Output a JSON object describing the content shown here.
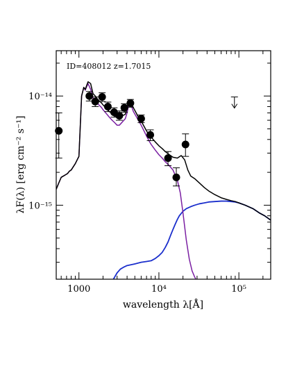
{
  "chart_data": {
    "type": "scatter",
    "title": "",
    "annotation": "ID=408012 z=1.7015",
    "xlabel": "wavelength λ[Å]",
    "ylabel": "λF(λ) [erg cm⁻² s⁻¹]",
    "x_scale": "log",
    "y_scale": "log",
    "xlim": [
      520,
      250000
    ],
    "ylim": [
      2.1e-16,
      2.6e-14
    ],
    "x_ticks": [
      {
        "value": 1000,
        "label": "1000"
      },
      {
        "value": 10000,
        "label": "10⁴"
      },
      {
        "value": 100000,
        "label": "10⁵"
      }
    ],
    "y_ticks": [
      {
        "value": 1e-15,
        "label": "10⁻¹⁵"
      },
      {
        "value": 1e-14,
        "label": "10⁻¹⁴"
      }
    ],
    "colors": {
      "data": "#000000",
      "total_model": "#000000",
      "stellar_model": "#7a1fa2",
      "agn_model": "#1a2ecc"
    },
    "points": [
      {
        "x": 560,
        "y": 4.8e-15,
        "ylo": 2.7e-15,
        "yhi": 7e-15
      },
      {
        "x": 1350,
        "y": 1e-14,
        "ylo": 9e-15,
        "yhi": 1.1e-14
      },
      {
        "x": 1600,
        "y": 8.9e-15,
        "ylo": 8e-15,
        "yhi": 9.8e-15
      },
      {
        "x": 1950,
        "y": 9.8e-15,
        "ylo": 8.9e-15,
        "yhi": 1.07e-14
      },
      {
        "x": 2300,
        "y": 8e-15,
        "ylo": 7.2e-15,
        "yhi": 8.8e-15
      },
      {
        "x": 2750,
        "y": 7.1e-15,
        "ylo": 6.4e-15,
        "yhi": 7.8e-15
      },
      {
        "x": 3200,
        "y": 6.6e-15,
        "ylo": 6e-15,
        "yhi": 7.3e-15
      },
      {
        "x": 3700,
        "y": 7.8e-15,
        "ylo": 7.1e-15,
        "yhi": 8.5e-15
      },
      {
        "x": 4400,
        "y": 8.6e-15,
        "ylo": 7.9e-15,
        "yhi": 9.3e-15
      },
      {
        "x": 6000,
        "y": 6.2e-15,
        "ylo": 5.7e-15,
        "yhi": 6.7e-15
      },
      {
        "x": 7800,
        "y": 4.4e-15,
        "ylo": 3.9e-15,
        "yhi": 4.9e-15
      },
      {
        "x": 13000,
        "y": 2.7e-15,
        "ylo": 2.3e-15,
        "yhi": 3.1e-15
      },
      {
        "x": 16500,
        "y": 1.8e-15,
        "ylo": 1.5e-15,
        "yhi": 2.2e-15
      },
      {
        "x": 21500,
        "y": 3.6e-15,
        "ylo": 2.8e-15,
        "yhi": 4.5e-15
      }
    ],
    "upper_limits": [
      {
        "x": 88000,
        "y": 9.8e-15
      }
    ],
    "series": [
      {
        "key": "total",
        "x": [
          520,
          560,
          600,
          640,
          680,
          720,
          760,
          800,
          850,
          900,
          950,
          1000,
          1080,
          1150,
          1200,
          1250,
          1300,
          1400,
          1500,
          1600,
          1700,
          1800,
          1900,
          2000,
          2200,
          2400,
          2600,
          2800,
          3000,
          3200,
          3500,
          3800,
          4000,
          4200,
          4500,
          4800,
          5200,
          5600,
          6000,
          6500,
          7000,
          7500,
          8000,
          9000,
          10000,
          11000,
          12000,
          13500,
          15000,
          17000,
          19000,
          21000,
          23000,
          25000,
          28000,
          32000,
          37000,
          42000,
          50000,
          60000,
          70000,
          80000,
          90000,
          100000,
          120000,
          150000,
          180000,
          210000,
          250000
        ],
        "y": [
          1.4e-15,
          1.6e-15,
          1.8e-15,
          1.85e-15,
          1.9e-15,
          1.95e-15,
          2.05e-15,
          2.1e-15,
          2.25e-15,
          2.4e-15,
          2.6e-15,
          2.8e-15,
          1e-14,
          1.2e-14,
          1.15e-14,
          1.25e-14,
          1.35e-14,
          1.3e-14,
          1.05e-14,
          1e-14,
          9.4e-15,
          9e-15,
          8.7e-15,
          8.3e-15,
          7.7e-15,
          7.2e-15,
          6.9e-15,
          6.6e-15,
          6.3e-15,
          6.3e-15,
          6.6e-15,
          6.8e-15,
          7.7e-15,
          9e-15,
          8.6e-15,
          7.8e-15,
          7e-15,
          6.3e-15,
          5.9e-15,
          5.3e-15,
          4.8e-15,
          4.4e-15,
          4.2e-15,
          3.8e-15,
          3.5e-15,
          3.3e-15,
          3.1e-15,
          2.9e-15,
          2.75e-15,
          2.7e-15,
          2.85e-15,
          2.6e-15,
          2.1e-15,
          1.85e-15,
          1.75e-15,
          1.6e-15,
          1.45e-15,
          1.35e-15,
          1.25e-15,
          1.17e-15,
          1.13e-15,
          1.1e-15,
          1.08e-15,
          1.05e-15,
          1e-15,
          9.3e-16,
          8.5e-16,
          8e-16,
          7.3e-16
        ]
      },
      {
        "key": "stellar",
        "x": [
          520,
          560,
          600,
          640,
          680,
          720,
          760,
          800,
          850,
          900,
          950,
          1000,
          1080,
          1150,
          1200,
          1250,
          1300,
          1400,
          1500,
          1600,
          1700,
          1800,
          1900,
          2000,
          2200,
          2400,
          2600,
          2800,
          3000,
          3200,
          3500,
          3800,
          4000,
          4200,
          4500,
          4800,
          5200,
          5600,
          6000,
          6500,
          7000,
          7500,
          8000,
          9000,
          10000,
          11000,
          12000,
          13500,
          15000,
          17000,
          18500,
          20000,
          22000,
          24000,
          26000,
          28000,
          30000
        ],
        "y": [
          1.4e-15,
          1.6e-15,
          1.8e-15,
          1.85e-15,
          1.9e-15,
          1.95e-15,
          2.05e-15,
          2.1e-15,
          2.25e-15,
          2.4e-15,
          2.6e-15,
          2.8e-15,
          1e-14,
          1.2e-14,
          1.13e-14,
          1.22e-14,
          1.3e-14,
          1.15e-14,
          9.6e-15,
          9e-15,
          8.6e-15,
          8.2e-15,
          7.9e-15,
          7.5e-15,
          6.9e-15,
          6.4e-15,
          6e-15,
          5.7e-15,
          5.4e-15,
          5.4e-15,
          5.8e-15,
          6.2e-15,
          7e-15,
          8.4e-15,
          8.2e-15,
          7.2e-15,
          6.5e-15,
          5.9e-15,
          5.4e-15,
          4.8e-15,
          4.3e-15,
          3.9e-15,
          3.6e-15,
          3.2e-15,
          2.9e-15,
          2.7e-15,
          2.5e-15,
          2.3e-15,
          2.1e-15,
          1.7e-15,
          1.3e-15,
          8.5e-16,
          4.8e-16,
          3.2e-16,
          2.5e-16,
          2.2e-16,
          2e-16
        ]
      },
      {
        "key": "agn",
        "x": [
          2700,
          3000,
          3300,
          3600,
          4000,
          4500,
          5000,
          5500,
          6000,
          7000,
          8000,
          9000,
          10000,
          11000,
          12000,
          13000,
          14000,
          15000,
          16000,
          17000,
          18000,
          20000,
          22000,
          25000,
          28000,
          32000,
          37000,
          42000,
          50000,
          60000,
          70000,
          80000,
          90000,
          100000,
          120000,
          150000,
          180000,
          210000,
          250000
        ],
        "y": [
          2.1e-16,
          2.4e-16,
          2.6e-16,
          2.7e-16,
          2.8e-16,
          2.85e-16,
          2.9e-16,
          2.95e-16,
          3e-16,
          3.05e-16,
          3.1e-16,
          3.25e-16,
          3.45e-16,
          3.7e-16,
          4.1e-16,
          4.6e-16,
          5.3e-16,
          6e-16,
          6.7e-16,
          7.4e-16,
          8e-16,
          8.8e-16,
          9.3e-16,
          9.7e-16,
          1e-15,
          1.03e-15,
          1.05e-15,
          1.07e-15,
          1.08e-15,
          1.09e-15,
          1.09e-15,
          1.08e-15,
          1.07e-15,
          1.05e-15,
          1e-15,
          9.3e-16,
          8.5e-16,
          8e-16,
          7.3e-16
        ]
      }
    ]
  }
}
